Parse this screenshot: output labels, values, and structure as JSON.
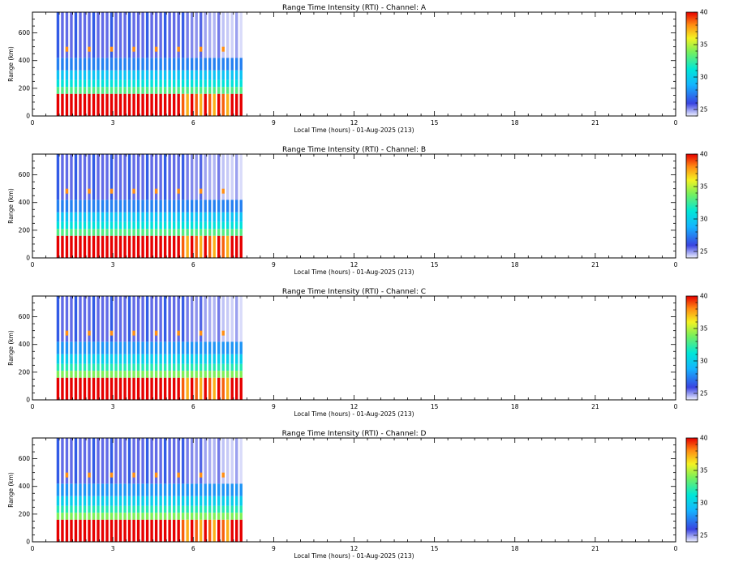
{
  "chart_data": [
    {
      "type": "heatmap",
      "title": "Range Time Intensity (RTI) - Channel: A",
      "xlabel": "Local Time (hours) - 01-Aug-2025 (213)",
      "ylabel": "Range (km)",
      "xlim": [
        0,
        24
      ],
      "ylim": [
        0,
        750
      ],
      "x_ticks": [
        "0",
        "3",
        "6",
        "9",
        "12",
        "15",
        "18",
        "21",
        "0"
      ],
      "y_ticks": [
        "0",
        "200",
        "400",
        "600"
      ],
      "colorbar": {
        "min": 24,
        "max": 40,
        "ticks": [
          "25",
          "30",
          "35",
          "40"
        ]
      },
      "data_time_range": [
        0.9,
        7.9
      ],
      "bands": [
        {
          "range": [
            0,
            160
          ],
          "value": 40
        },
        {
          "range": [
            160,
            210
          ],
          "value": 33
        },
        {
          "range": [
            210,
            260
          ],
          "value": 31
        },
        {
          "range": [
            260,
            330
          ],
          "value": 29.5
        },
        {
          "range": [
            330,
            420
          ],
          "value": 27.5
        },
        {
          "range": [
            420,
            750
          ],
          "value": 25.5
        }
      ]
    },
    {
      "type": "heatmap",
      "title": "Range Time Intensity (RTI) - Channel: B",
      "xlabel": "Local Time (hours) - 01-Aug-2025 (213)",
      "ylabel": "Range (km)",
      "xlim": [
        0,
        24
      ],
      "ylim": [
        0,
        750
      ],
      "x_ticks": [
        "0",
        "3",
        "6",
        "9",
        "12",
        "15",
        "18",
        "21",
        "0"
      ],
      "y_ticks": [
        "0",
        "200",
        "400",
        "600"
      ],
      "colorbar": {
        "min": 24,
        "max": 40,
        "ticks": [
          "25",
          "30",
          "35",
          "40"
        ]
      },
      "data_time_range": [
        0.9,
        7.9
      ],
      "bands": [
        {
          "range": [
            0,
            160
          ],
          "value": 40
        },
        {
          "range": [
            160,
            210
          ],
          "value": 33
        },
        {
          "range": [
            210,
            260
          ],
          "value": 31
        },
        {
          "range": [
            260,
            330
          ],
          "value": 29.5
        },
        {
          "range": [
            330,
            420
          ],
          "value": 27.5
        },
        {
          "range": [
            420,
            750
          ],
          "value": 25.5
        }
      ]
    },
    {
      "type": "heatmap",
      "title": "Range Time Intensity (RTI) - Channel: C",
      "xlabel": "Local Time (hours) - 01-Aug-2025 (213)",
      "ylabel": "Range (km)",
      "xlim": [
        0,
        24
      ],
      "ylim": [
        0,
        750
      ],
      "x_ticks": [
        "0",
        "3",
        "6",
        "9",
        "12",
        "15",
        "18",
        "21",
        "0"
      ],
      "y_ticks": [
        "0",
        "200",
        "400",
        "600"
      ],
      "colorbar": {
        "min": 24,
        "max": 40,
        "ticks": [
          "25",
          "30",
          "35",
          "40"
        ]
      },
      "data_time_range": [
        0.9,
        7.9
      ],
      "bands": [
        {
          "range": [
            0,
            160
          ],
          "value": 40
        },
        {
          "range": [
            160,
            210
          ],
          "value": 34
        },
        {
          "range": [
            210,
            260
          ],
          "value": 32
        },
        {
          "range": [
            260,
            330
          ],
          "value": 30
        },
        {
          "range": [
            330,
            420
          ],
          "value": 28
        },
        {
          "range": [
            420,
            750
          ],
          "value": 25.5
        }
      ]
    },
    {
      "type": "heatmap",
      "title": "Range Time Intensity (RTI) - Channel: D",
      "xlabel": "Local Time (hours) - 01-Aug-2025 (213)",
      "ylabel": "Range (km)",
      "xlim": [
        0,
        24
      ],
      "ylim": [
        0,
        750
      ],
      "x_ticks": [
        "0",
        "3",
        "6",
        "9",
        "12",
        "15",
        "18",
        "21",
        "0"
      ],
      "y_ticks": [
        "0",
        "200",
        "400",
        "600"
      ],
      "colorbar": {
        "min": 24,
        "max": 40,
        "ticks": [
          "25",
          "30",
          "35",
          "40"
        ]
      },
      "data_time_range": [
        0.9,
        7.9
      ],
      "bands": [
        {
          "range": [
            0,
            160
          ],
          "value": 40
        },
        {
          "range": [
            160,
            210
          ],
          "value": 34
        },
        {
          "range": [
            210,
            260
          ],
          "value": 32
        },
        {
          "range": [
            260,
            330
          ],
          "value": 30
        },
        {
          "range": [
            330,
            420
          ],
          "value": 28
        },
        {
          "range": [
            420,
            750
          ],
          "value": 25.5
        }
      ]
    }
  ]
}
